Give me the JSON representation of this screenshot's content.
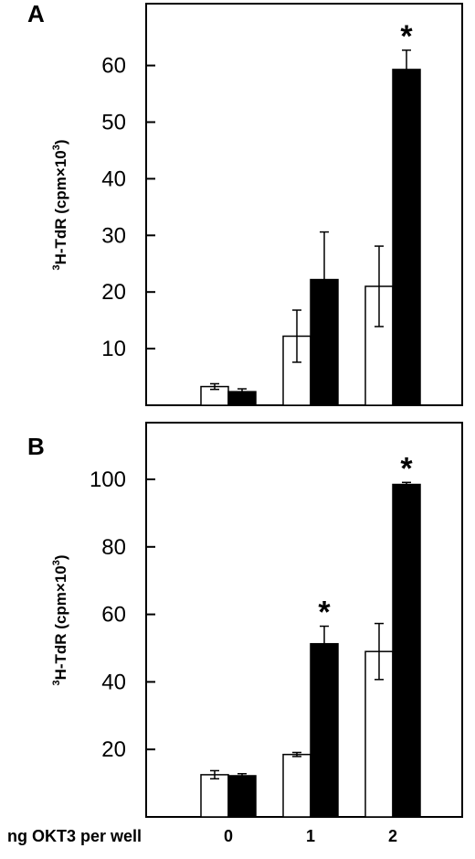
{
  "chart_data": [
    {
      "type": "bar",
      "panel": "A",
      "categories": [
        "0",
        "1",
        "2"
      ],
      "series": [
        {
          "fill": "#ffffff",
          "values": [
            3.3,
            12.2,
            21.0
          ],
          "errors": [
            0.5,
            4.6,
            7.1
          ]
        },
        {
          "fill": "#000000",
          "values": [
            2.4,
            22.2,
            59.3
          ],
          "errors": [
            0.5,
            8.4,
            3.4
          ]
        }
      ],
      "significant": [
        [
          false,
          false
        ],
        [
          false,
          false
        ],
        [
          false,
          true
        ]
      ],
      "ylabel": {
        "pre": "3",
        "main": "H-TdR (cpm×10",
        "sup": "3",
        "post": ")"
      },
      "yticks": [
        "10",
        "20",
        "30",
        "40",
        "50",
        "60"
      ],
      "ylim": [
        0,
        70
      ],
      "grid": false
    },
    {
      "type": "bar",
      "panel": "B",
      "categories": [
        "0",
        "1",
        "2"
      ],
      "series": [
        {
          "fill": "#ffffff",
          "values": [
            12.5,
            18.5,
            49.0
          ],
          "errors": [
            1.2,
            0.6,
            8.3
          ]
        },
        {
          "fill": "#000000",
          "values": [
            12.2,
            51.3,
            98.5
          ],
          "errors": [
            0.6,
            5.2,
            0.6
          ]
        }
      ],
      "significant": [
        [
          false,
          false
        ],
        [
          false,
          true
        ],
        [
          false,
          true
        ]
      ],
      "ylabel": {
        "pre": "3",
        "main": "H-TdR (cpm×10",
        "sup": "3",
        "post": ")"
      },
      "yticks": [
        "20",
        "40",
        "60",
        "80",
        "100"
      ],
      "ylim": [
        0,
        120
      ],
      "grid": false
    }
  ],
  "xlabel": "ng OKT3 per well",
  "significance_marker": "*"
}
